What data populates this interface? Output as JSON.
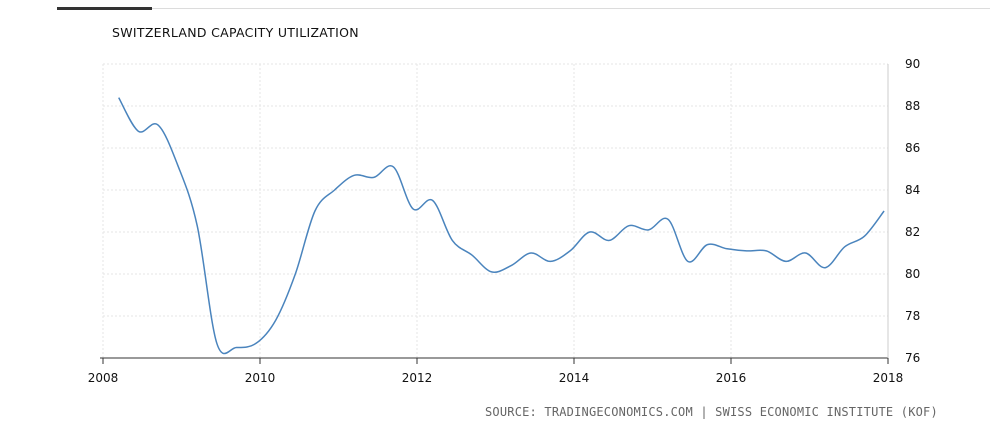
{
  "chart_data": {
    "type": "line",
    "title": "SWITZERLAND CAPACITY UTILIZATION",
    "xlabel": "",
    "ylabel": "",
    "xlim": [
      2008,
      2018
    ],
    "ylim": [
      76,
      90
    ],
    "x_ticks": [
      "2008",
      "2010",
      "2012",
      "2014",
      "2016",
      "2018"
    ],
    "y_ticks": [
      "76",
      "78",
      "80",
      "82",
      "84",
      "86",
      "88",
      "90"
    ],
    "grid": true,
    "y_axis_side": "right",
    "line_color": "#4a84bd",
    "series": [
      {
        "name": "",
        "x": [
          2008.2,
          2008.45,
          2008.7,
          2008.95,
          2009.2,
          2009.45,
          2009.7,
          2009.95,
          2010.2,
          2010.45,
          2010.7,
          2010.95,
          2011.2,
          2011.45,
          2011.7,
          2011.95,
          2012.2,
          2012.45,
          2012.7,
          2012.95,
          2013.2,
          2013.45,
          2013.7,
          2013.95,
          2014.2,
          2014.45,
          2014.7,
          2014.95,
          2015.2,
          2015.45,
          2015.7,
          2015.95,
          2016.2,
          2016.45,
          2016.7,
          2016.95,
          2017.2,
          2017.45,
          2017.7,
          2017.95
        ],
        "values": [
          88.4,
          86.8,
          87.1,
          85.2,
          82.3,
          76.7,
          76.5,
          76.7,
          77.8,
          80.0,
          83.0,
          84.0,
          84.7,
          84.6,
          85.1,
          83.1,
          83.5,
          81.6,
          80.9,
          80.1,
          80.4,
          81.0,
          80.6,
          81.1,
          82.0,
          81.6,
          82.3,
          82.1,
          82.6,
          80.6,
          81.4,
          81.2,
          81.1,
          81.1,
          80.6,
          81.0,
          80.3,
          81.3,
          81.8,
          83.0
        ]
      }
    ]
  },
  "source_text": "SOURCE: TRADINGECONOMICS.COM | SWISS ECONOMIC INSTITUTE (KOF)"
}
